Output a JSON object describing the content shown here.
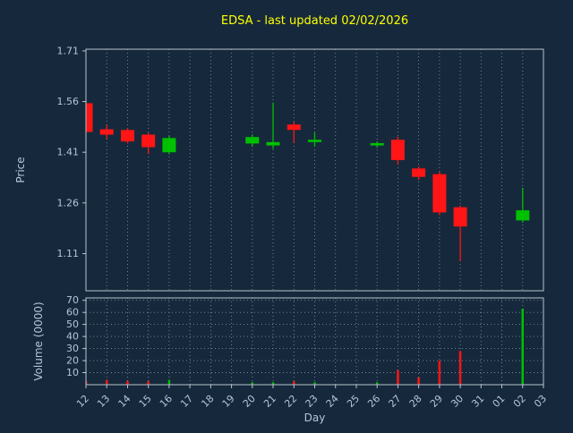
{
  "title": "EDSA - last updated 02/02/2026",
  "colors": {
    "background": "#16293c",
    "title": "#ffff00",
    "text": "#b4c6d8",
    "grid": "#cfd8e0",
    "border": "#b6c2cc",
    "up": "#00c000",
    "down": "#ff1515"
  },
  "chart_data": {
    "type": "candlestick",
    "title": "EDSA - last updated 02/02/2026",
    "xlabel": "Day",
    "x_categories": [
      "12",
      "13",
      "14",
      "15",
      "16",
      "17",
      "18",
      "19",
      "20",
      "21",
      "22",
      "23",
      "24",
      "25",
      "26",
      "27",
      "28",
      "29",
      "30",
      "31",
      "01",
      "02",
      "03"
    ],
    "price_panel": {
      "ylabel": "Price",
      "yticks": [
        1.71,
        1.56,
        1.41,
        1.26,
        1.11
      ],
      "ylim": [
        1.0,
        1.715
      ],
      "grid_vertical": true,
      "grid_horizontal": false
    },
    "volume_panel": {
      "ylabel": "Volume (0000)",
      "yticks": [
        70,
        60,
        50,
        40,
        30,
        20,
        10
      ],
      "ylim": [
        0,
        72
      ],
      "grid_vertical": true,
      "grid_horizontal": true
    },
    "candles": [
      {
        "day": "12",
        "open": 1.555,
        "high": 1.562,
        "low": 1.466,
        "close": 1.47,
        "volume": 3
      },
      {
        "day": "13",
        "open": 1.478,
        "high": 1.49,
        "low": 1.45,
        "close": 1.462,
        "volume": 4
      },
      {
        "day": "14",
        "open": 1.476,
        "high": 1.482,
        "low": 1.436,
        "close": 1.442,
        "volume": 3
      },
      {
        "day": "15",
        "open": 1.462,
        "high": 1.468,
        "low": 1.405,
        "close": 1.425,
        "volume": 3
      },
      {
        "day": "16",
        "open": 1.41,
        "high": 1.458,
        "low": 1.404,
        "close": 1.452,
        "volume": 4
      },
      {
        "day": "20",
        "open": 1.436,
        "high": 1.462,
        "low": 1.428,
        "close": 1.455,
        "volume": 2
      },
      {
        "day": "21",
        "open": 1.43,
        "high": 1.557,
        "low": 1.42,
        "close": 1.44,
        "volume": 2
      },
      {
        "day": "22",
        "open": 1.492,
        "high": 1.5,
        "low": 1.438,
        "close": 1.476,
        "volume": 3
      },
      {
        "day": "23",
        "open": 1.44,
        "high": 1.468,
        "low": 1.428,
        "close": 1.447,
        "volume": 2
      },
      {
        "day": "26",
        "open": 1.43,
        "high": 1.442,
        "low": 1.424,
        "close": 1.437,
        "volume": 2
      },
      {
        "day": "27",
        "open": 1.447,
        "high": 1.456,
        "low": 1.374,
        "close": 1.387,
        "volume": 12
      },
      {
        "day": "28",
        "open": 1.362,
        "high": 1.368,
        "low": 1.328,
        "close": 1.337,
        "volume": 6
      },
      {
        "day": "29",
        "open": 1.345,
        "high": 1.352,
        "low": 1.224,
        "close": 1.232,
        "volume": 20
      },
      {
        "day": "30",
        "open": 1.247,
        "high": 1.252,
        "low": 1.088,
        "close": 1.19,
        "volume": 28
      },
      {
        "day": "02",
        "open": 1.208,
        "high": 1.305,
        "low": 1.202,
        "close": 1.238,
        "volume": 63
      }
    ]
  }
}
